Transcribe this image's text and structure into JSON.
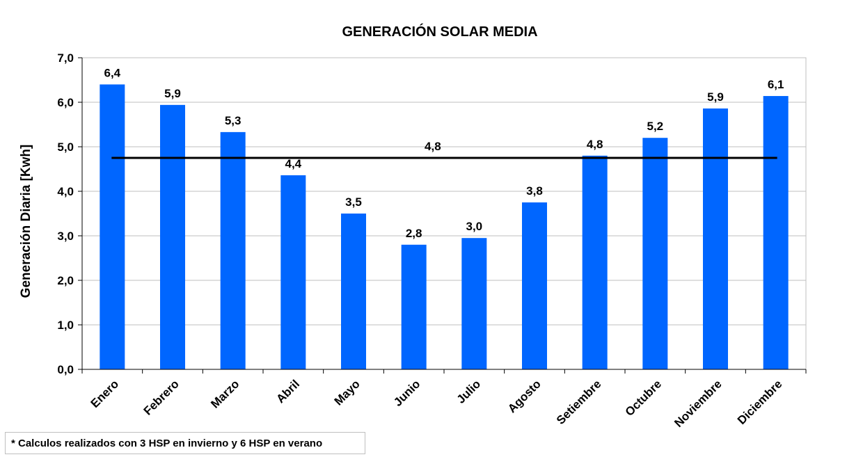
{
  "chart_data": {
    "type": "bar",
    "title": "GENERACIÓN SOLAR MEDIA",
    "xlabel": "",
    "ylabel": "Generación Diaria [Kwh]",
    "ylim": [
      0,
      7
    ],
    "yticks": [
      "0,0",
      "1,0",
      "2,0",
      "3,0",
      "4,0",
      "5,0",
      "6,0",
      "7,0"
    ],
    "grid": true,
    "legend": "none",
    "categories": [
      "Enero",
      "Febrero",
      "Marzo",
      "Abril",
      "Mayo",
      "Junio",
      "Julio",
      "Agosto",
      "Setiembre",
      "Octubre",
      "Noviembre",
      "Diciembre"
    ],
    "series": [
      {
        "values": [
          6.4,
          5.94,
          5.33,
          4.36,
          3.5,
          2.8,
          2.95,
          3.75,
          4.8,
          5.2,
          5.86,
          6.14
        ],
        "labels": [
          "6,4",
          "5,9",
          "5,3",
          "4,4",
          "3,5",
          "2,8",
          "3,0",
          "3,8",
          "4,8",
          "5,2",
          "5,9",
          "6,1"
        ],
        "color": "#0066ff"
      }
    ],
    "average_line": {
      "value": 4.75,
      "label": "4,8",
      "color": "#000000"
    }
  },
  "footnote": "* Calculos realizados con 3 HSP en invierno y 6 HSP en verano"
}
